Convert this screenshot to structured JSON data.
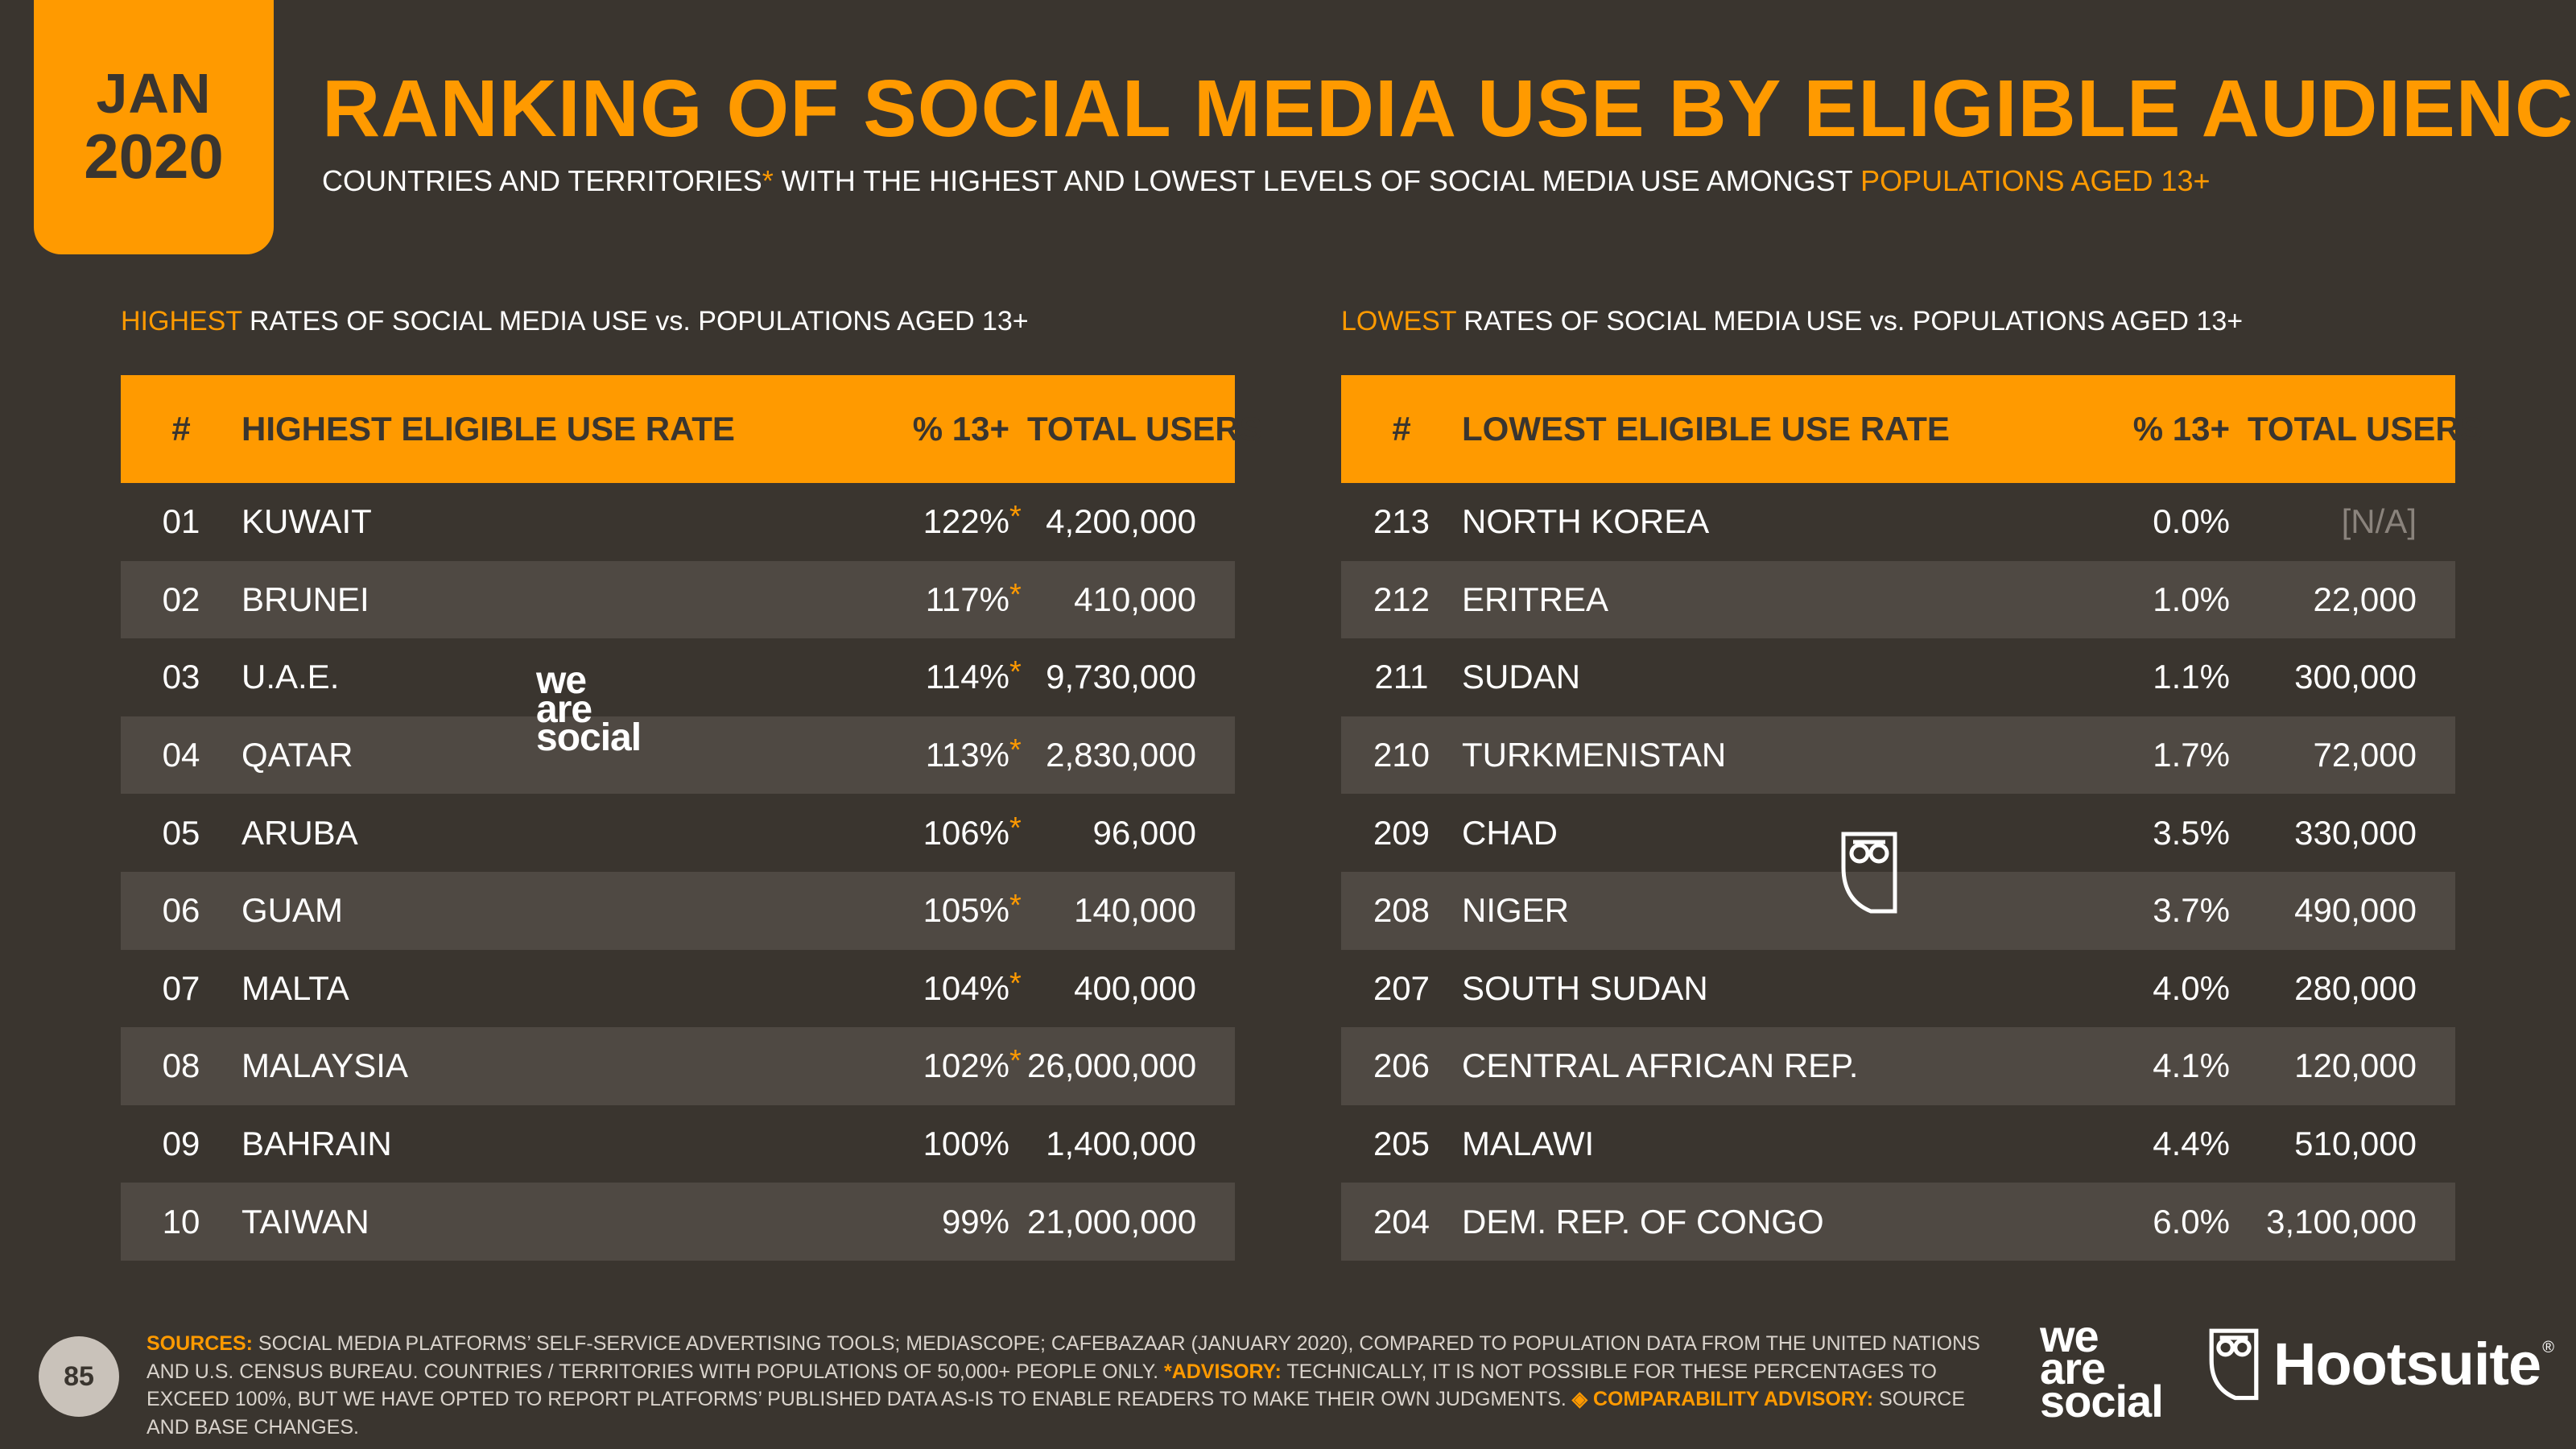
{
  "badge": {
    "month": "JAN",
    "year": "2020"
  },
  "title": "RANKING OF SOCIAL MEDIA USE BY ELIGIBLE AUDIENCES",
  "subtitle": {
    "part1": "COUNTRIES AND TERRITORIES",
    "star": "*",
    "part2": " WITH THE HIGHEST AND LOWEST LEVELS OF SOCIAL MEDIA USE AMONGST ",
    "highlight": "POPULATIONS AGED 13+"
  },
  "highest": {
    "section_lead": "HIGHEST",
    "section_rest": " RATES OF SOCIAL MEDIA USE vs. POPULATIONS AGED 13+",
    "headers": {
      "rank": "#",
      "name": "HIGHEST ELIGIBLE USE RATE",
      "pct": "% 13+",
      "total": "TOTAL USERS"
    },
    "rows": [
      {
        "rank": "01",
        "name": "KUWAIT",
        "pct": "122%",
        "star": "*",
        "total": "4,200,000"
      },
      {
        "rank": "02",
        "name": "BRUNEI",
        "pct": "117%",
        "star": "*",
        "total": "410,000"
      },
      {
        "rank": "03",
        "name": "U.A.E.",
        "pct": "114%",
        "star": "*",
        "total": "9,730,000"
      },
      {
        "rank": "04",
        "name": "QATAR",
        "pct": "113%",
        "star": "*",
        "total": "2,830,000"
      },
      {
        "rank": "05",
        "name": "ARUBA",
        "pct": "106%",
        "star": "*",
        "total": "96,000"
      },
      {
        "rank": "06",
        "name": "GUAM",
        "pct": "105%",
        "star": "*",
        "total": "140,000"
      },
      {
        "rank": "07",
        "name": "MALTA",
        "pct": "104%",
        "star": "*",
        "total": "400,000"
      },
      {
        "rank": "08",
        "name": "MALAYSIA",
        "pct": "102%",
        "star": "*",
        "total": "26,000,000"
      },
      {
        "rank": "09",
        "name": "BAHRAIN",
        "pct": "100%",
        "star": "",
        "total": "1,400,000"
      },
      {
        "rank": "10",
        "name": "TAIWAN",
        "pct": "99%",
        "star": "",
        "total": "21,000,000"
      }
    ]
  },
  "lowest": {
    "section_lead": "LOWEST",
    "section_rest": " RATES OF SOCIAL MEDIA USE vs. POPULATIONS AGED 13+",
    "headers": {
      "rank": "#",
      "name": "LOWEST ELIGIBLE USE RATE",
      "pct": "% 13+",
      "total": "TOTAL USERS"
    },
    "rows": [
      {
        "rank": "213",
        "name": "NORTH KOREA",
        "pct": "0.0%",
        "total": "[N/A]"
      },
      {
        "rank": "212",
        "name": "ERITREA",
        "pct": "1.0%",
        "total": "22,000"
      },
      {
        "rank": "211",
        "name": "SUDAN",
        "pct": "1.1%",
        "total": "300,000"
      },
      {
        "rank": "210",
        "name": "TURKMENISTAN",
        "pct": "1.7%",
        "total": "72,000"
      },
      {
        "rank": "209",
        "name": "CHAD",
        "pct": "3.5%",
        "total": "330,000"
      },
      {
        "rank": "208",
        "name": "NIGER",
        "pct": "3.7%",
        "total": "490,000"
      },
      {
        "rank": "207",
        "name": "SOUTH SUDAN",
        "pct": "4.0%",
        "total": "280,000"
      },
      {
        "rank": "206",
        "name": "CENTRAL AFRICAN REP.",
        "pct": "4.1%",
        "total": "120,000"
      },
      {
        "rank": "205",
        "name": "MALAWI",
        "pct": "4.4%",
        "total": "510,000"
      },
      {
        "rank": "204",
        "name": "DEM. REP. OF CONGO",
        "pct": "6.0%",
        "total": "3,100,000"
      }
    ]
  },
  "watermark": {
    "line1": "we",
    "line2": "are",
    "line3": "social"
  },
  "footer": {
    "page_number": "85",
    "sources_label": "SOURCES:",
    "sources_text": " SOCIAL MEDIA PLATFORMS’ SELF-SERVICE ADVERTISING TOOLS; MEDIASCOPE; CAFEBAZAAR (JANUARY 2020), COMPARED TO POPULATION DATA FROM THE UNITED NATIONS AND U.S. CENSUS BUREAU. COUNTRIES / TERRITORIES WITH POPULATIONS OF 50,000+ PEOPLE ONLY. ",
    "advisory_label": "*ADVISORY:",
    "advisory_text": " TECHNICALLY, IT IS NOT POSSIBLE FOR THESE PERCENTAGES TO EXCEED 100%, BUT WE HAVE OPTED TO REPORT PLATFORMS’ PUBLISHED DATA AS-IS TO ENABLE READERS TO MAKE THEIR OWN JUDGMENTS. ",
    "comparability_label": "◈ COMPARABILITY ADVISORY:",
    "comparability_text": " SOURCE AND BASE CHANGES.",
    "logo_was": {
      "line1": "we",
      "line2": "are",
      "line3": "social"
    },
    "logo_hootsuite": "Hootsuite",
    "logo_reg": "®"
  },
  "colors": {
    "background": "#3a352f",
    "accent": "#ff9a00",
    "row_alt": "#4f4943"
  }
}
